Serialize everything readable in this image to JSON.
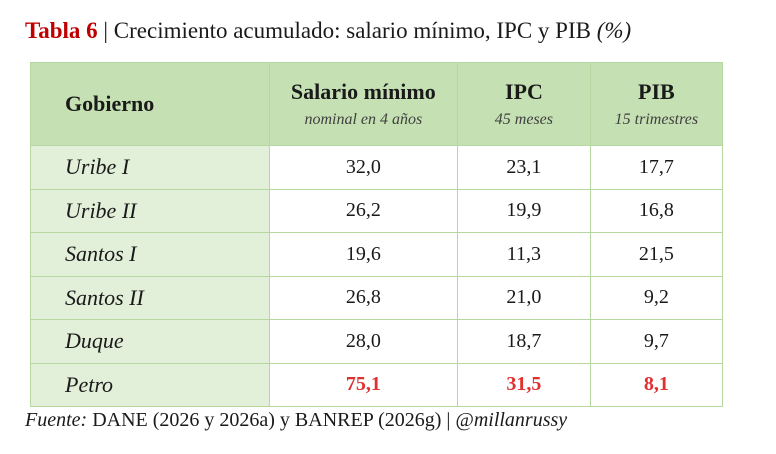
{
  "header": {
    "label": "Tabla 6",
    "title": "| Crecimiento acumulado: salario mínimo, IPC y PIB",
    "unit": "(%)"
  },
  "table": {
    "columns": [
      {
        "name": "Gobierno"
      },
      {
        "name": "Salario mínimo",
        "sub": "nominal en 4 años"
      },
      {
        "name": "IPC",
        "sub": "45 meses"
      },
      {
        "name": "PIB",
        "sub": "15 trimestres"
      }
    ],
    "rows": [
      [
        "Uribe I",
        "32,0",
        "23,1",
        "17,7"
      ],
      [
        "Uribe II",
        "26,2",
        "19,9",
        "16,8"
      ],
      [
        "Santos I",
        "19,6",
        "11,3",
        "21,5"
      ],
      [
        "Santos II",
        "26,8",
        "21,0",
        "9,2"
      ],
      [
        "Duque",
        "28,0",
        "18,7",
        "9,7"
      ],
      [
        "Petro",
        "75,1",
        "31,5",
        "8,1"
      ]
    ]
  },
  "footer": {
    "label": "Fuente:",
    "text": "DANE (2026 y 2026a) y BANREP (2026g) |",
    "handle": "@millanrussy"
  }
}
